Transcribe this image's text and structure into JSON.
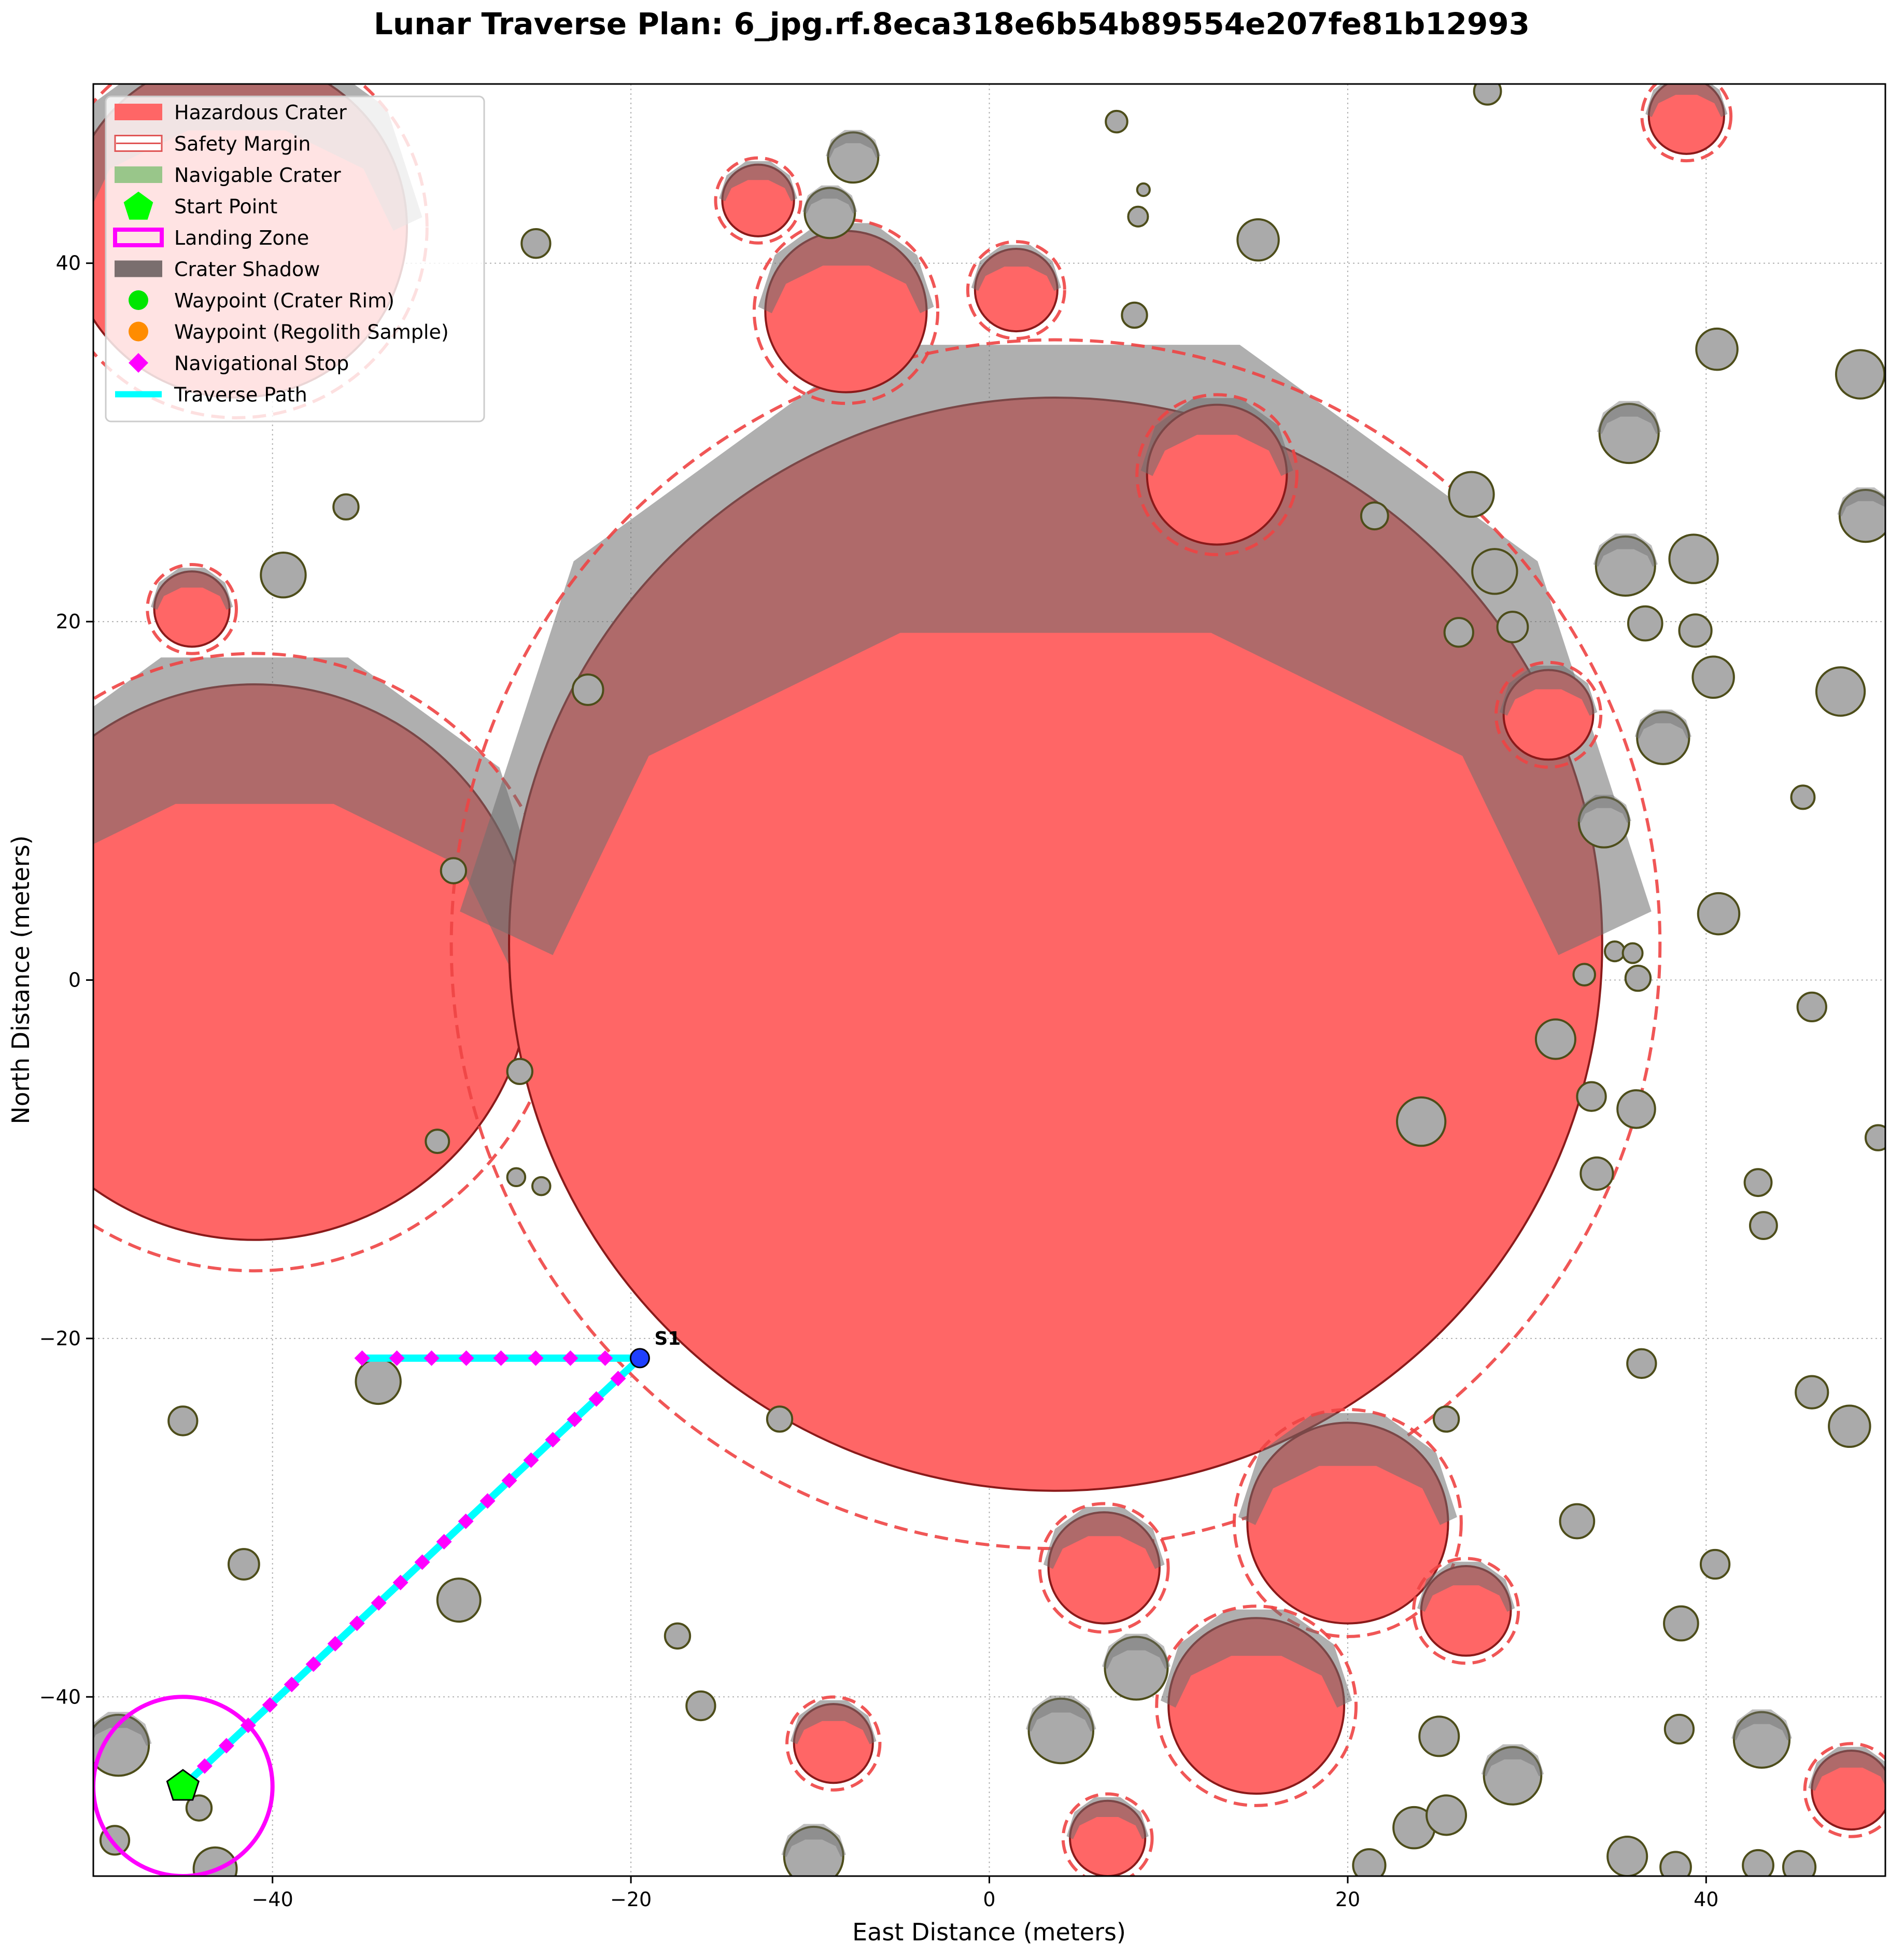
{
  "chart_data": {
    "type": "scatter",
    "title": "Lunar Traverse Plan: 6_jpg.rf.8eca318e6b54b89554e207fe81b12993",
    "xlabel": "East Distance (meters)",
    "ylabel": "North Distance (meters)",
    "xlim": [
      -50,
      50
    ],
    "ylim": [
      -50,
      50
    ],
    "xticks": [
      -40,
      -20,
      0,
      20,
      40
    ],
    "yticks": [
      -40,
      -20,
      0,
      20,
      40
    ],
    "grid": true,
    "legend_position": "upper-left",
    "legend": [
      {
        "label": "Hazardous Crater",
        "kind": "patch",
        "color": "#ff6666"
      },
      {
        "label": "Safety Margin",
        "kind": "hatch",
        "color": "#e05555"
      },
      {
        "label": "Navigable Crater",
        "kind": "patch",
        "color": "#99c68a"
      },
      {
        "label": "Start Point",
        "kind": "pentagon",
        "color": "#00ff00"
      },
      {
        "label": "Landing Zone",
        "kind": "outline",
        "color": "#ff00ff"
      },
      {
        "label": "Crater Shadow",
        "kind": "patch",
        "color": "#7a6e6e"
      },
      {
        "label": "Waypoint (Crater Rim)",
        "kind": "dot",
        "color": "#00e600"
      },
      {
        "label": "Waypoint (Regolith Sample)",
        "kind": "dot",
        "color": "#ff8c00"
      },
      {
        "label": "Navigational Stop",
        "kind": "diamond",
        "color": "#ff00ff"
      },
      {
        "label": "Traverse Path",
        "kind": "line",
        "color": "#00ffff"
      }
    ],
    "hazardous_craters": [
      {
        "x": -42,
        "y": 42,
        "r": 9.5
      },
      {
        "x": -41,
        "y": 1,
        "r": 15.5
      },
      {
        "x": 3.7,
        "y": 2,
        "r": 30.5
      },
      {
        "x": -12.9,
        "y": 43.5,
        "r": 2.0
      },
      {
        "x": -8,
        "y": 37.3,
        "r": 4.5
      },
      {
        "x": 1.5,
        "y": 38.5,
        "r": 2.3
      },
      {
        "x": 12.7,
        "y": 28.2,
        "r": 3.9
      },
      {
        "x": -44.5,
        "y": 20.7,
        "r": 2.1
      },
      {
        "x": 38.9,
        "y": 48.2,
        "r": 2.1
      },
      {
        "x": 31.2,
        "y": 14.8,
        "r": 2.5
      },
      {
        "x": 6.4,
        "y": -32.8,
        "r": 3.1
      },
      {
        "x": 20,
        "y": -30.3,
        "r": 5.6
      },
      {
        "x": 26.6,
        "y": -35.2,
        "r": 2.5
      },
      {
        "x": 14.9,
        "y": -40.5,
        "r": 4.9
      },
      {
        "x": -8.7,
        "y": -42.6,
        "r": 2.2
      },
      {
        "x": 6.6,
        "y": -47.9,
        "r": 2.1
      },
      {
        "x": 48.1,
        "y": -45.2,
        "r": 2.2
      }
    ],
    "navigable_craters": [
      {
        "x": -7.6,
        "y": 45.9,
        "r": 1.4
      },
      {
        "x": -8.9,
        "y": 42.8,
        "r": 1.4
      },
      {
        "x": 7.1,
        "y": 47.9,
        "r": 0.6
      },
      {
        "x": 8.6,
        "y": 44.1,
        "r": 0.35
      },
      {
        "x": 8.3,
        "y": 42.6,
        "r": 0.55
      },
      {
        "x": 15,
        "y": 41.3,
        "r": 1.15
      },
      {
        "x": 27.8,
        "y": 49.6,
        "r": 0.75
      },
      {
        "x": 8.1,
        "y": 37.1,
        "r": 0.7
      },
      {
        "x": -25.3,
        "y": 41.1,
        "r": 0.8
      },
      {
        "x": -35.9,
        "y": 26.4,
        "r": 0.7
      },
      {
        "x": -39.4,
        "y": 22.6,
        "r": 1.25
      },
      {
        "x": 40.6,
        "y": 35.2,
        "r": 1.15
      },
      {
        "x": 48.6,
        "y": 33.8,
        "r": 1.35
      },
      {
        "x": 35.7,
        "y": 30.5,
        "r": 1.65
      },
      {
        "x": 21.5,
        "y": 25.9,
        "r": 0.75
      },
      {
        "x": 26.9,
        "y": 27.1,
        "r": 1.25
      },
      {
        "x": 48.9,
        "y": 25.9,
        "r": 1.45
      },
      {
        "x": 35.5,
        "y": 23.1,
        "r": 1.65
      },
      {
        "x": 39.3,
        "y": 23.5,
        "r": 1.35
      },
      {
        "x": 28.2,
        "y": 22.8,
        "r": 1.25
      },
      {
        "x": 29.2,
        "y": 19.7,
        "r": 0.85
      },
      {
        "x": 26.2,
        "y": 19.4,
        "r": 0.8
      },
      {
        "x": 36.6,
        "y": 19.9,
        "r": 0.95
      },
      {
        "x": 39.4,
        "y": 19.5,
        "r": 0.9
      },
      {
        "x": -22.4,
        "y": 16.2,
        "r": 0.85
      },
      {
        "x": 40.4,
        "y": 16.9,
        "r": 1.15
      },
      {
        "x": 47.5,
        "y": 16.1,
        "r": 1.35
      },
      {
        "x": 37.6,
        "y": 13.5,
        "r": 1.45
      },
      {
        "x": 45.4,
        "y": 10.2,
        "r": 0.65
      },
      {
        "x": 34.3,
        "y": 8.8,
        "r": 1.4
      },
      {
        "x": -29.9,
        "y": 6.1,
        "r": 0.7
      },
      {
        "x": 40.7,
        "y": 3.7,
        "r": 1.15
      },
      {
        "x": 34.9,
        "y": 1.6,
        "r": 0.55
      },
      {
        "x": 35.9,
        "y": 1.5,
        "r": 0.55
      },
      {
        "x": 33.2,
        "y": 0.3,
        "r": 0.6
      },
      {
        "x": 36.2,
        "y": 0.1,
        "r": 0.7
      },
      {
        "x": 45.9,
        "y": -1.5,
        "r": 0.8
      },
      {
        "x": 31.6,
        "y": -3.3,
        "r": 1.1
      },
      {
        "x": -26.2,
        "y": -5.1,
        "r": 0.7
      },
      {
        "x": 33.6,
        "y": -6.5,
        "r": 0.8
      },
      {
        "x": 36.1,
        "y": -7.2,
        "r": 1.05
      },
      {
        "x": 24.1,
        "y": -7.9,
        "r": 1.35
      },
      {
        "x": -30.8,
        "y": -9,
        "r": 0.65
      },
      {
        "x": 49.6,
        "y": -8.8,
        "r": 0.7
      },
      {
        "x": 33.9,
        "y": -10.8,
        "r": 0.9
      },
      {
        "x": -26.4,
        "y": -11,
        "r": 0.5
      },
      {
        "x": -25,
        "y": -11.5,
        "r": 0.5
      },
      {
        "x": 42.9,
        "y": -11.3,
        "r": 0.75
      },
      {
        "x": 43.2,
        "y": -13.7,
        "r": 0.75
      },
      {
        "x": 36.4,
        "y": -21.4,
        "r": 0.8
      },
      {
        "x": -34.1,
        "y": -22.4,
        "r": 1.25
      },
      {
        "x": -11.7,
        "y": -24.5,
        "r": 0.7
      },
      {
        "x": 25.5,
        "y": -24.5,
        "r": 0.7
      },
      {
        "x": -45,
        "y": -24.6,
        "r": 0.8
      },
      {
        "x": 45.9,
        "y": -23,
        "r": 0.9
      },
      {
        "x": 48,
        "y": -24.9,
        "r": 1.15
      },
      {
        "x": 32.8,
        "y": -30.2,
        "r": 0.95
      },
      {
        "x": -41.6,
        "y": -32.6,
        "r": 0.85
      },
      {
        "x": -29.6,
        "y": -34.6,
        "r": 1.2
      },
      {
        "x": 40.5,
        "y": -32.6,
        "r": 0.8
      },
      {
        "x": -17.4,
        "y": -36.6,
        "r": 0.7
      },
      {
        "x": 38.6,
        "y": -35.9,
        "r": 0.95
      },
      {
        "x": 8.2,
        "y": -38.4,
        "r": 1.75
      },
      {
        "x": -16.1,
        "y": -40.5,
        "r": 0.8
      },
      {
        "x": 4,
        "y": -41.9,
        "r": 1.8
      },
      {
        "x": 25.1,
        "y": -42.2,
        "r": 1.1
      },
      {
        "x": -48.6,
        "y": -42.7,
        "r": 1.7
      },
      {
        "x": 38.5,
        "y": -41.8,
        "r": 0.8
      },
      {
        "x": 43.1,
        "y": -42.4,
        "r": 1.55
      },
      {
        "x": 29.2,
        "y": -44.4,
        "r": 1.6
      },
      {
        "x": -44.1,
        "y": -46.2,
        "r": 0.7
      },
      {
        "x": 23.7,
        "y": -47.3,
        "r": 1.15
      },
      {
        "x": 25.5,
        "y": -46.6,
        "r": 1.1
      },
      {
        "x": -48.8,
        "y": -48,
        "r": 0.8
      },
      {
        "x": -9.8,
        "y": -48.9,
        "r": 1.65
      },
      {
        "x": -43.2,
        "y": -49.6,
        "r": 1.2
      },
      {
        "x": 21.2,
        "y": -49.4,
        "r": 0.9
      },
      {
        "x": 35.6,
        "y": -48.9,
        "r": 1.1
      },
      {
        "x": 38.3,
        "y": -49.5,
        "r": 0.85
      },
      {
        "x": 42.9,
        "y": -49.4,
        "r": 0.85
      },
      {
        "x": 45.2,
        "y": -49.5,
        "r": 0.9
      }
    ],
    "landing_zone": {
      "x": -45,
      "y": -45,
      "r": 5
    },
    "start_point": {
      "x": -45,
      "y": -45
    },
    "waypoint": {
      "label": "S1",
      "x": -19.5,
      "y": -21.1
    },
    "traverse_path": [
      [
        -45,
        -45
      ],
      [
        -19.5,
        -21.1
      ],
      [
        -35,
        -21.1
      ]
    ]
  },
  "colors": {
    "hazard_fill": "#ff6666",
    "hazard_edge": "#8b1a1a",
    "safety_margin": "#ee4444",
    "navigable_fill": "#aaaaaa",
    "navigable_edge": "#4d4d1a",
    "shadow": "#6e6e6e",
    "path": "#00ffff",
    "stop": "#ff00ff",
    "landing_zone": "#ff00ff",
    "start": "#00ff00",
    "waypoint": "#1f3fff"
  }
}
